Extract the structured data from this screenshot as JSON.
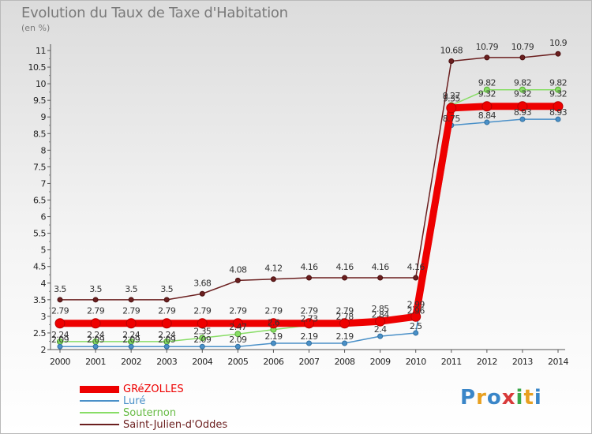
{
  "title": "Evolution du Taux de Taxe d'Habitation",
  "subtitle": "(en %)",
  "logo": {
    "text": "Proxiti",
    "colors": [
      "#3a86c8",
      "#e8a020",
      "#3a86c8",
      "#d83a3a",
      "#3aa84a",
      "#e8a020",
      "#3a86c8"
    ]
  },
  "chart_data": {
    "type": "line",
    "title": "Evolution du Taux de Taxe d'Habitation",
    "ylabel": "(en %)",
    "x": [
      2000,
      2001,
      2002,
      2003,
      2004,
      2005,
      2006,
      2007,
      2008,
      2009,
      2010,
      2011,
      2012,
      2013,
      2014
    ],
    "ylim": [
      2,
      11
    ],
    "yticks": [
      2,
      2.5,
      3,
      3.5,
      4,
      4.5,
      5,
      5.5,
      6,
      6.5,
      7,
      7.5,
      8,
      8.5,
      9,
      9.5,
      10,
      10.5,
      11
    ],
    "grid": false,
    "legend_position": "bottom-left",
    "series": [
      {
        "name": "GRéZOLLES",
        "color": "#ee0000",
        "values": [
          2.79,
          2.79,
          2.79,
          2.79,
          2.79,
          2.79,
          2.79,
          2.79,
          2.79,
          2.85,
          2.99,
          9.27,
          9.32,
          9.32,
          9.32
        ],
        "labels": [
          "2.79",
          "2.79",
          "2.79",
          "2.79",
          "2.79",
          "2.79",
          "2.79",
          "2.79",
          "2.79",
          "2.85",
          "2.99",
          "9.27",
          "9.32",
          "9.32",
          "9.32"
        ]
      },
      {
        "name": "Luré",
        "color": "#4a90c8",
        "values": [
          2.09,
          2.09,
          2.09,
          2.09,
          2.09,
          2.09,
          2.19,
          2.19,
          2.19,
          2.4,
          2.5,
          8.75,
          8.84,
          8.93,
          8.93
        ],
        "labels": [
          "2.09",
          "2.09",
          "2.09",
          "2.09",
          "2.09",
          "2.09",
          "2.19",
          "2.19",
          "2.19",
          "2.4",
          "2.5",
          "8.75",
          "8.84",
          "8.93",
          "8.93"
        ]
      },
      {
        "name": "Souternon",
        "color": "#88dd66",
        "values": [
          2.24,
          2.24,
          2.24,
          2.24,
          2.35,
          2.47,
          2.6,
          2.73,
          2.78,
          2.84,
          2.96,
          9.35,
          9.82,
          9.82,
          9.82
        ],
        "labels": [
          "2.24",
          "2.24",
          "2.24",
          "2.24",
          "2.35",
          "2.47",
          "2.6",
          "2.73",
          "2.78",
          "2.84",
          "2.96",
          "9.35",
          "9.82",
          "9.82",
          "9.82"
        ]
      },
      {
        "name": "Saint-Julien-d'Oddes",
        "color": "#6b1f1f",
        "values": [
          3.5,
          3.5,
          3.5,
          3.5,
          3.68,
          4.08,
          4.12,
          4.16,
          4.16,
          4.16,
          4.16,
          10.68,
          10.79,
          10.79,
          10.9
        ],
        "labels": [
          "3.5",
          "3.5",
          "3.5",
          "3.5",
          "3.68",
          "4.08",
          "4.12",
          "4.16",
          "4.16",
          "4.16",
          "4.16",
          "10.68",
          "10.79",
          "10.79",
          "10.9"
        ]
      }
    ]
  }
}
